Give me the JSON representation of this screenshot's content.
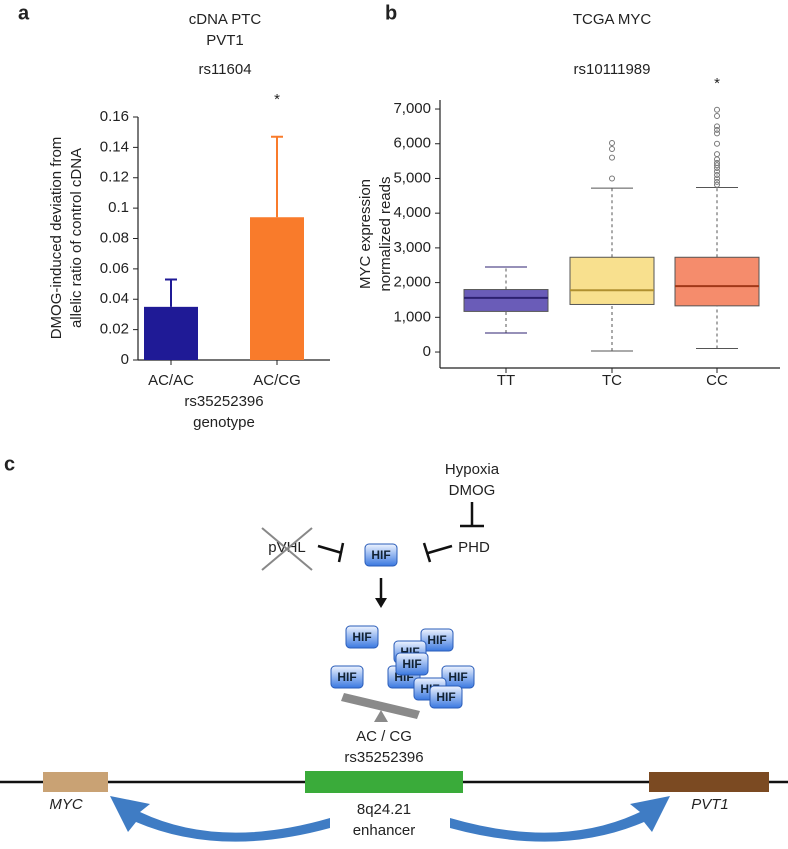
{
  "panel_labels": [
    "a",
    "b",
    "c"
  ],
  "chart_data": [
    {
      "type": "bar",
      "title_lines": [
        "cDNA PTC",
        "PVT1",
        "rs11604"
      ],
      "ylabel_lines": [
        "DMOG-induced deviation from",
        "allelic ratio of control cDNA"
      ],
      "xlabel_lines": [
        "rs35252396",
        "genotype"
      ],
      "categories": [
        "AC/AC",
        "AC/CG"
      ],
      "values": [
        0.035,
        0.094
      ],
      "errors": [
        0.018,
        0.053
      ],
      "colors": [
        "#1f1a96",
        "#f97b2b"
      ],
      "significance": [
        null,
        "*"
      ],
      "ylim": [
        0,
        0.16
      ],
      "yticks": [
        0,
        0.02,
        0.04,
        0.06,
        0.08,
        0.1,
        0.12,
        0.14,
        0.16
      ]
    },
    {
      "type": "box",
      "title": "TCGA MYC",
      "subtitle": "rs10111989",
      "ylabel_lines": [
        "MYC expression",
        "normalized reads"
      ],
      "categories": [
        "TT",
        "TC",
        "CC"
      ],
      "boxes": [
        {
          "whislo": 550,
          "q1": 1170,
          "med": 1560,
          "q3": 1800,
          "whishi": 2450,
          "fliers": []
        },
        {
          "whislo": 30,
          "q1": 1370,
          "med": 1780,
          "q3": 2730,
          "whishi": 4720,
          "fliers": [
            5000,
            5600,
            5850,
            6020
          ]
        },
        {
          "whislo": 100,
          "q1": 1330,
          "med": 1900,
          "q3": 2730,
          "whishi": 4740,
          "fliers": [
            4820,
            4900,
            5000,
            5100,
            5200,
            5300,
            5380,
            5450,
            5550,
            5700,
            6000,
            6300,
            6400,
            6500,
            6800,
            6980
          ]
        }
      ],
      "colors": [
        "#6a5cb8",
        "#f8e08e",
        "#f58c6c"
      ],
      "median_colors": [
        "#2c2070",
        "#b09030",
        "#a03818"
      ],
      "significance": [
        null,
        null,
        "*"
      ],
      "ylim": [
        -460,
        7260
      ],
      "yticks": [
        0,
        {
          "value": 1000,
          "label": "1,000"
        },
        {
          "value": 2000,
          "label": "2,000"
        },
        {
          "value": 3000,
          "label": "3,000"
        },
        {
          "value": 4000,
          "label": "4,000"
        },
        {
          "value": 5000,
          "label": "5,000"
        },
        {
          "value": 6000,
          "label": "6,000"
        },
        {
          "value": 7000,
          "label": "7,000"
        }
      ]
    }
  ],
  "diagram": {
    "hypoxia": "Hypoxia",
    "dmog": "DMOG",
    "pvhl": "pVHL",
    "phd": "PHD",
    "hif_labels": [
      "HIF",
      "HIF",
      "HIF",
      "HIF",
      "HIF",
      "HIF",
      "HIF",
      "HIF",
      "HIF",
      "HIF"
    ],
    "genotype": "AC / CG",
    "snp": "rs35252396",
    "myc": "MYC",
    "pvt1": "PVT1",
    "locus": "8q24.21",
    "enhancer": "enhancer"
  }
}
